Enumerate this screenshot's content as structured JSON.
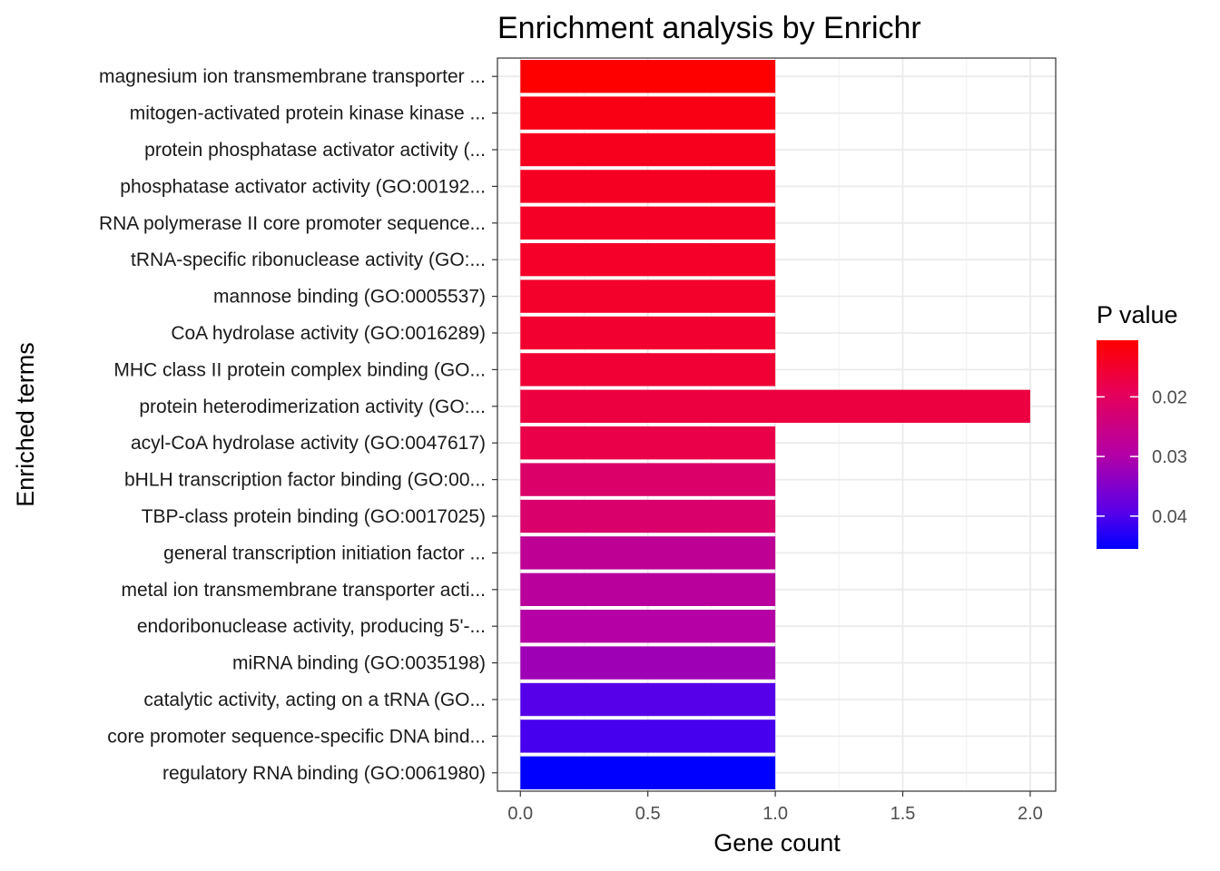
{
  "chart_data": {
    "type": "bar",
    "orientation": "horizontal",
    "title": "Enrichment analysis by Enrichr",
    "xlabel": "Gene count",
    "ylabel": "Enriched terms",
    "xlim": [
      -0.09,
      2.1
    ],
    "xticks": [
      "0.0",
      "0.5",
      "1.0",
      "1.5",
      "2.0"
    ],
    "grid": true,
    "categories": [
      "magnesium ion transmembrane transporter ...",
      "mitogen-activated protein kinase kinase ...",
      "protein phosphatase activator activity (...",
      "phosphatase activator activity (GO:00192...",
      "RNA polymerase II core promoter sequence...",
      "tRNA-specific ribonuclease activity (GO:...",
      "mannose binding (GO:0005537)",
      "CoA hydrolase activity (GO:0016289)",
      "MHC class II protein complex binding (GO...",
      "protein heterodimerization activity (GO:...",
      "acyl-CoA hydrolase activity (GO:0047617)",
      "bHLH transcription factor binding (GO:00...",
      "TBP-class protein binding (GO:0017025)",
      "general transcription initiation factor ...",
      "metal ion transmembrane transporter acti...",
      "endoribonuclease activity, producing 5'-...",
      "miRNA binding (GO:0035198)",
      "catalytic activity, acting on a tRNA (GO...",
      "core promoter sequence-specific DNA bind...",
      "regulatory RNA binding (GO:0061980)"
    ],
    "values": [
      1,
      1,
      1,
      1,
      1,
      1,
      1,
      1,
      1,
      2,
      1,
      1,
      1,
      1,
      1,
      1,
      1,
      1,
      1,
      1
    ],
    "p_values": [
      0.0105,
      0.0125,
      0.0135,
      0.014,
      0.0143,
      0.0145,
      0.0148,
      0.0152,
      0.0158,
      0.0168,
      0.0178,
      0.0215,
      0.022,
      0.0275,
      0.0285,
      0.0295,
      0.032,
      0.0395,
      0.0405,
      0.0455
    ],
    "color_scale": {
      "title": "P value",
      "low_color": "#ff0000",
      "high_color": "#0000ff",
      "range": [
        0.0105,
        0.0455
      ],
      "ticks": [
        {
          "value": 0.02,
          "label": "0.02"
        },
        {
          "value": 0.03,
          "label": "0.03"
        },
        {
          "value": 0.04,
          "label": "0.04"
        }
      ]
    },
    "legend_position": "right"
  }
}
